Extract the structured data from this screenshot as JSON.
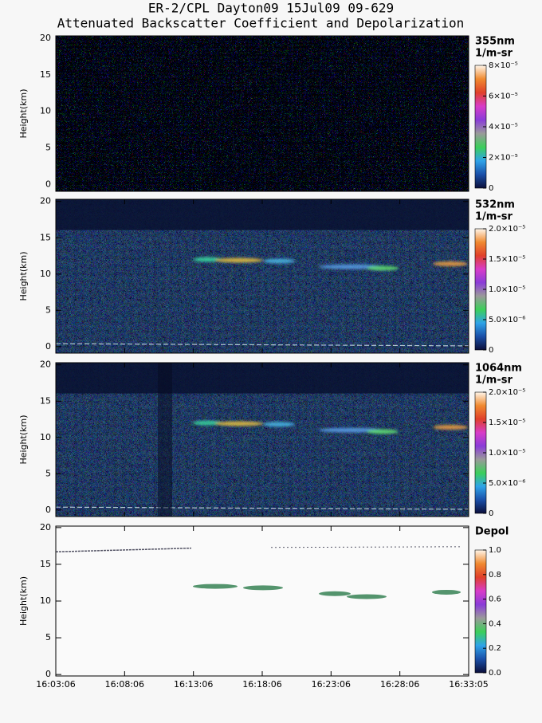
{
  "title": "ER-2/CPL Dayton09 15Jul09 09-629",
  "subtitle": "Attenuated Backscatter Coefficient and Depolarization",
  "x_labels": [
    "16:03:06",
    "16:08:06",
    "16:13:06",
    "16:18:06",
    "16:23:06",
    "16:28:06",
    "16:33:05"
  ],
  "colormap": [
    "#0b0f3a",
    "#1a4fa8",
    "#2fa3e8",
    "#3ccf5a",
    "#9a9a9a",
    "#8a3cd8",
    "#d83cc8",
    "#e0402a",
    "#f08a30",
    "#fff6ea"
  ],
  "chart_data": [
    {
      "type": "heatmap",
      "ylabel": "Height(km)",
      "ylim": [
        -0.9,
        20.3
      ],
      "yticks": [
        0,
        5,
        10,
        15,
        20
      ],
      "colorbar_title": "355nm",
      "colorbar_units": "1/m-sr",
      "clim": [
        0,
        8e-05
      ],
      "cticks": [
        0,
        {
          "value": 2e-05,
          "label": "2×10⁻⁵"
        },
        {
          "value": 4e-05,
          "label": "4×10⁻⁵"
        },
        {
          "value": 6e-05,
          "label": "6×10⁻⁵"
        },
        {
          "value": 8e-05,
          "label": "8×10⁻⁵"
        }
      ]
    },
    {
      "type": "heatmap",
      "ylabel": "Height(km)",
      "ylim": [
        -0.9,
        20.3
      ],
      "yticks": [
        0,
        5,
        10,
        15,
        20
      ],
      "colorbar_title": "532nm",
      "colorbar_units": "1/m-sr",
      "clim": [
        0,
        2e-05
      ],
      "cticks": [
        0,
        {
          "value": 5e-06,
          "label": "5.0×10⁻⁶"
        },
        {
          "value": 1e-05,
          "label": "1.0×10⁻⁵"
        },
        {
          "value": 1.5e-05,
          "label": "1.5×10⁻⁵"
        },
        {
          "value": 2e-05,
          "label": "2.0×10⁻⁵"
        }
      ]
    },
    {
      "type": "heatmap",
      "ylabel": "Height(km)",
      "ylim": [
        -0.9,
        20.3
      ],
      "yticks": [
        0,
        5,
        10,
        15,
        20
      ],
      "colorbar_title": "1064nm",
      "colorbar_units": "1/m-sr",
      "clim": [
        0,
        2e-05
      ],
      "cticks": [
        0,
        {
          "value": 5e-06,
          "label": "5.0×10⁻⁶"
        },
        {
          "value": 1e-05,
          "label": "1.0×10⁻⁵"
        },
        {
          "value": 1.5e-05,
          "label": "1.5×10⁻⁵"
        },
        {
          "value": 2e-05,
          "label": "2.0×10⁻⁵"
        }
      ]
    },
    {
      "type": "heatmap",
      "ylabel": "Height(km)",
      "ylim": [
        -0.2,
        20.2
      ],
      "yticks": [
        0,
        5,
        10,
        15,
        20
      ],
      "colorbar_title": "Depol",
      "clim": [
        0,
        1
      ],
      "cticks": [
        {
          "value": 0,
          "label": "0.0"
        },
        0.2,
        0.4,
        0.6,
        0.8,
        {
          "value": 1,
          "label": "1.0"
        }
      ]
    }
  ]
}
